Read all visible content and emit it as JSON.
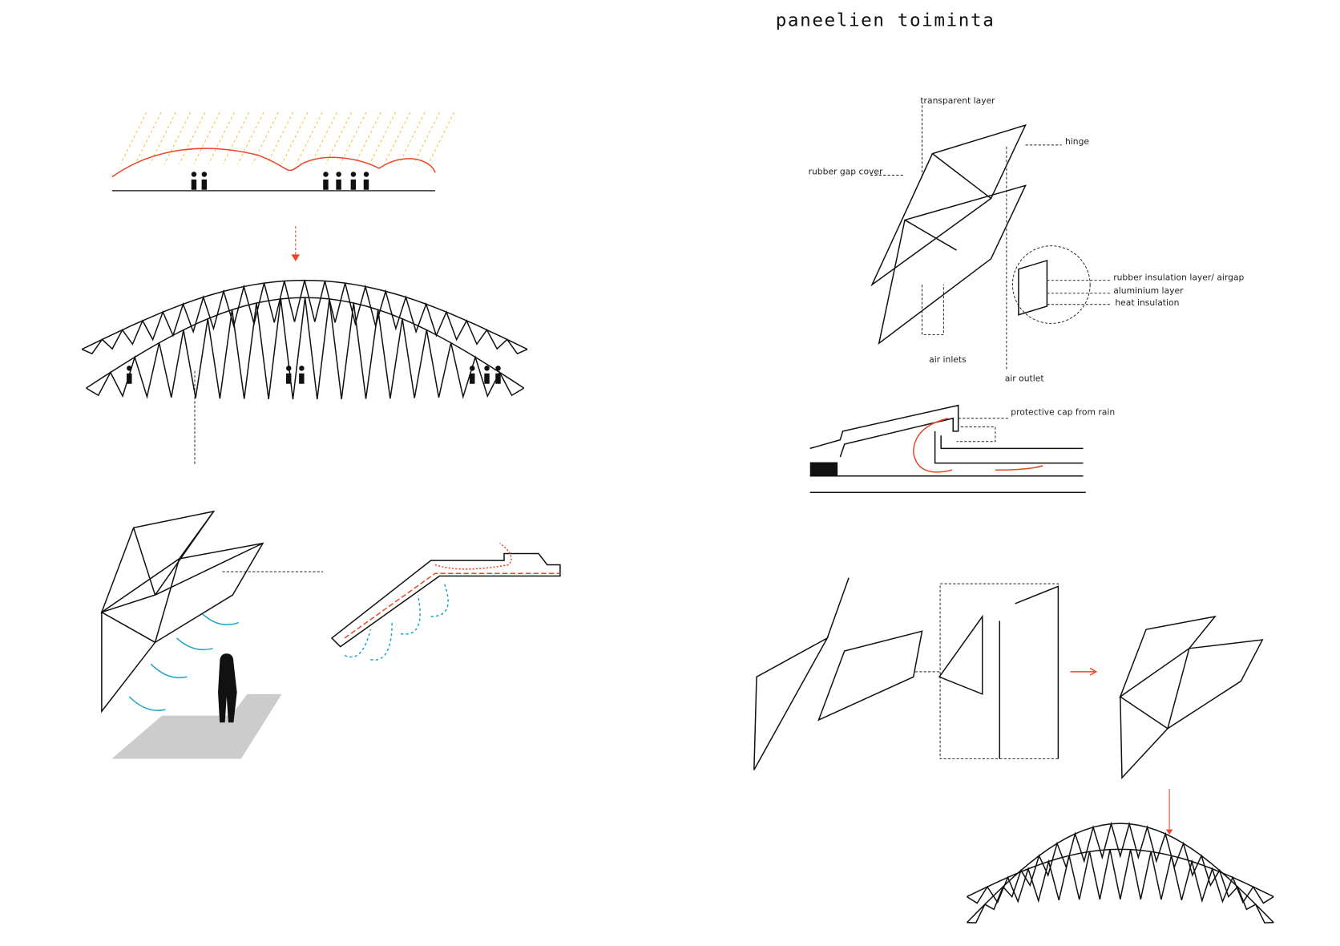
{
  "title": "paneelien toiminta",
  "labels": {
    "transparent_layer": "transparent layer",
    "hinge": "hinge",
    "rubber_gap_cover": "rubber gap cover",
    "rubber_insulation": "rubber insulation layer/ airgap",
    "aluminium": "aluminium layer",
    "heat_insulation": "heat insulation",
    "air_inlets": "air inlets",
    "air_outlet": "air outlet",
    "protective_cap": "protective cap from rain"
  }
}
